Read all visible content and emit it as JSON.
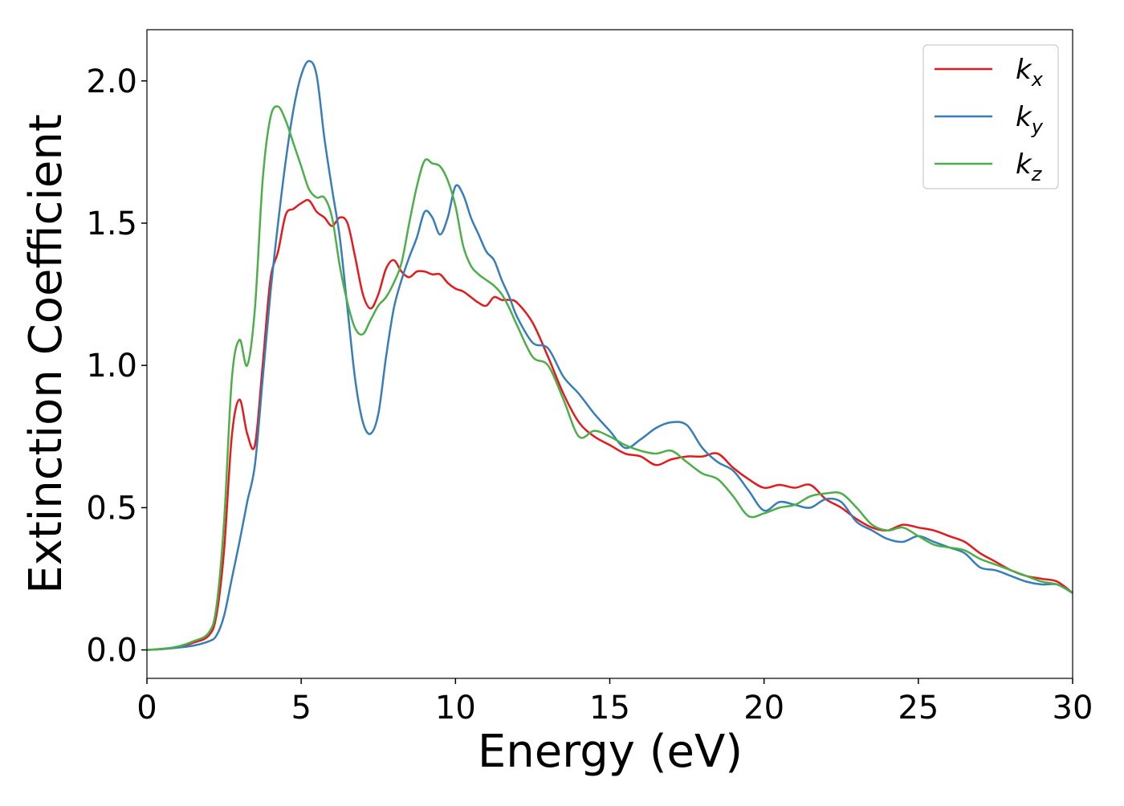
{
  "chart_data": {
    "type": "line",
    "xlabel": "Energy (eV)",
    "ylabel": "Extinction Coefficient",
    "x": [
      0,
      0.5,
      1,
      1.5,
      2,
      2.25,
      2.5,
      2.75,
      3,
      3.25,
      3.5,
      3.75,
      4,
      4.25,
      4.5,
      4.75,
      5,
      5.25,
      5.5,
      5.75,
      6,
      6.25,
      6.5,
      6.75,
      7,
      7.25,
      7.5,
      7.75,
      8,
      8.25,
      8.5,
      8.75,
      9,
      9.25,
      9.5,
      9.75,
      10,
      10.25,
      10.5,
      10.75,
      11,
      11.25,
      11.5,
      11.75,
      12,
      12.5,
      13,
      13.5,
      14,
      14.5,
      15,
      15.5,
      16,
      16.5,
      17,
      17.5,
      18,
      18.5,
      19,
      19.5,
      20,
      20.5,
      21,
      21.5,
      22,
      22.5,
      23,
      23.5,
      24,
      24.5,
      25,
      25.5,
      26,
      26.5,
      27,
      27.5,
      28,
      28.5,
      29,
      29.5,
      30
    ],
    "series": [
      {
        "name": "kx",
        "color": "#e41a1c",
        "values": [
          0,
          0.003,
          0.01,
          0.025,
          0.05,
          0.12,
          0.35,
          0.75,
          0.88,
          0.76,
          0.72,
          1.0,
          1.3,
          1.4,
          1.53,
          1.55,
          1.57,
          1.58,
          1.54,
          1.52,
          1.49,
          1.52,
          1.5,
          1.38,
          1.25,
          1.2,
          1.25,
          1.34,
          1.37,
          1.33,
          1.31,
          1.33,
          1.33,
          1.32,
          1.32,
          1.29,
          1.27,
          1.26,
          1.24,
          1.22,
          1.21,
          1.24,
          1.23,
          1.23,
          1.22,
          1.15,
          1.03,
          0.9,
          0.8,
          0.75,
          0.72,
          0.69,
          0.68,
          0.65,
          0.67,
          0.68,
          0.68,
          0.69,
          0.64,
          0.6,
          0.57,
          0.58,
          0.57,
          0.58,
          0.53,
          0.5,
          0.46,
          0.43,
          0.42,
          0.44,
          0.43,
          0.42,
          0.4,
          0.38,
          0.34,
          0.31,
          0.28,
          0.26,
          0.25,
          0.24,
          0.2
        ]
      },
      {
        "name": "ky",
        "color": "#377eb8",
        "values": [
          0,
          0.003,
          0.008,
          0.015,
          0.03,
          0.05,
          0.12,
          0.25,
          0.38,
          0.52,
          0.65,
          0.95,
          1.25,
          1.5,
          1.72,
          1.9,
          2.02,
          2.07,
          2.02,
          1.8,
          1.62,
          1.45,
          1.2,
          0.95,
          0.8,
          0.76,
          0.83,
          1.03,
          1.2,
          1.3,
          1.38,
          1.45,
          1.54,
          1.52,
          1.46,
          1.52,
          1.63,
          1.6,
          1.52,
          1.46,
          1.4,
          1.37,
          1.3,
          1.24,
          1.17,
          1.08,
          1.06,
          0.96,
          0.9,
          0.83,
          0.77,
          0.71,
          0.74,
          0.78,
          0.8,
          0.79,
          0.71,
          0.66,
          0.63,
          0.56,
          0.49,
          0.52,
          0.51,
          0.5,
          0.53,
          0.52,
          0.45,
          0.42,
          0.39,
          0.38,
          0.4,
          0.38,
          0.36,
          0.34,
          0.29,
          0.28,
          0.26,
          0.24,
          0.23,
          0.23,
          0.2
        ]
      },
      {
        "name": "kz",
        "color": "#4daf4a",
        "values": [
          0,
          0.004,
          0.012,
          0.03,
          0.06,
          0.15,
          0.45,
          0.95,
          1.09,
          1.0,
          1.2,
          1.65,
          1.87,
          1.91,
          1.86,
          1.78,
          1.7,
          1.62,
          1.59,
          1.59,
          1.52,
          1.35,
          1.22,
          1.13,
          1.11,
          1.16,
          1.21,
          1.24,
          1.29,
          1.36,
          1.5,
          1.63,
          1.72,
          1.71,
          1.7,
          1.65,
          1.56,
          1.42,
          1.35,
          1.32,
          1.3,
          1.28,
          1.25,
          1.2,
          1.14,
          1.03,
          1.0,
          0.88,
          0.75,
          0.77,
          0.75,
          0.72,
          0.7,
          0.69,
          0.7,
          0.66,
          0.62,
          0.6,
          0.54,
          0.47,
          0.48,
          0.5,
          0.51,
          0.54,
          0.55,
          0.55,
          0.5,
          0.44,
          0.42,
          0.43,
          0.4,
          0.37,
          0.36,
          0.35,
          0.32,
          0.3,
          0.28,
          0.26,
          0.24,
          0.23,
          0.2
        ]
      }
    ],
    "xlim": [
      0,
      30
    ],
    "xticks": [
      0,
      5,
      10,
      15,
      20,
      25,
      30
    ],
    "ylim": [
      -0.1,
      2.18
    ],
    "yticks": [
      {
        "value": 0,
        "label": "0.0"
      },
      0.5,
      {
        "value": 1,
        "label": "1.0"
      },
      1.5,
      {
        "value": 2,
        "label": "2.0"
      }
    ],
    "legend": "upper right",
    "grid": false
  }
}
